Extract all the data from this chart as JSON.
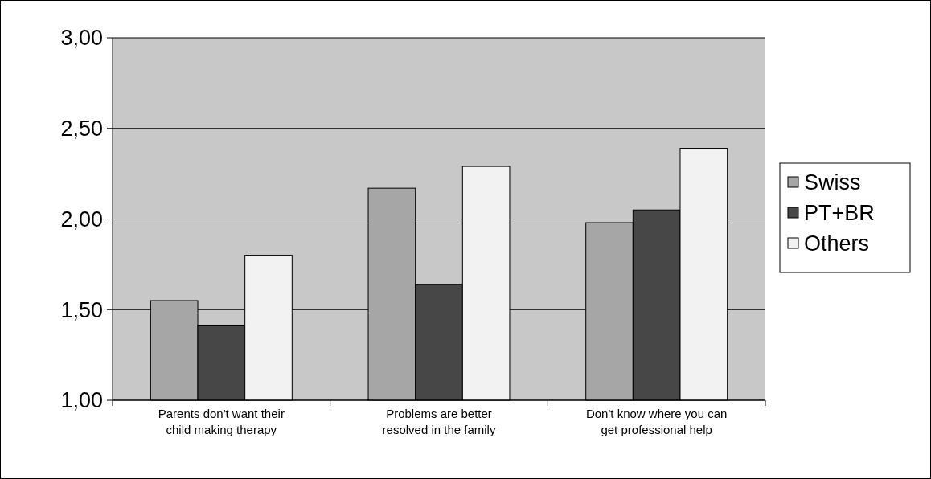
{
  "chart_data": {
    "type": "bar",
    "categories": [
      "Parents don't want their child making therapy",
      "Problems are better resolved in the family",
      "Don't know where you can get professional help"
    ],
    "series": [
      {
        "name": "Swiss",
        "color": "#a6a6a6",
        "values": [
          1.55,
          2.17,
          1.98
        ]
      },
      {
        "name": "PT+BR",
        "color": "#474747",
        "values": [
          1.41,
          1.64,
          2.05
        ]
      },
      {
        "name": "Others",
        "color": "#f2f2f2",
        "values": [
          1.8,
          2.29,
          2.39
        ]
      }
    ],
    "ylim": [
      1,
      3
    ],
    "yticks": [
      {
        "value": 1,
        "label": "1,00"
      },
      {
        "value": 1.5,
        "label": "1,50"
      },
      {
        "value": 2,
        "label": "2,00"
      },
      {
        "value": 2.5,
        "label": "2,50"
      },
      {
        "value": 3,
        "label": "3,00"
      }
    ],
    "grid": "y",
    "legend": "right"
  }
}
